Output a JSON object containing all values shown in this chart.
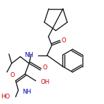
{
  "bg_color": "#ffffff",
  "bond_color": "#1a1a1a",
  "O_color": "#cc0000",
  "N_color": "#0000bb",
  "bond_lw": 1.0,
  "font_size": 6.2,
  "xlim": [
    0,
    150
  ],
  "ylim": [
    0,
    150
  ]
}
